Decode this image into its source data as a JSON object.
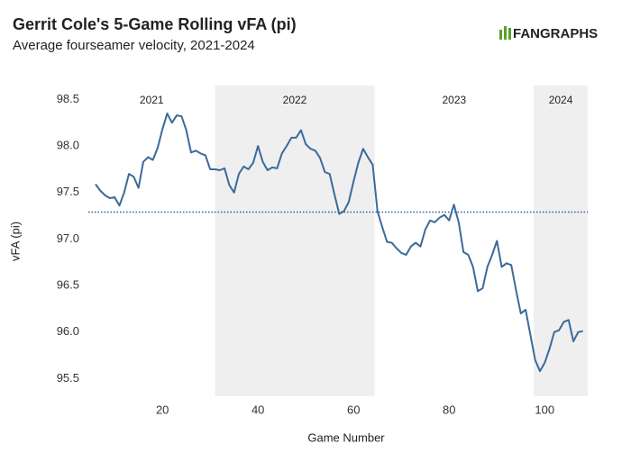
{
  "chart_data": {
    "type": "line",
    "title": "Gerrit Cole's 5-Game Rolling vFA (pi)",
    "subtitle": "Average fourseamer velocity, 2021-2024",
    "logo": "FANGRAPHS",
    "xlabel": "Game Number",
    "ylabel": "vFA (pi)",
    "xlim": [
      4.5,
      109
    ],
    "ylim": [
      95.31,
      98.65
    ],
    "xticks": [
      20,
      40,
      60,
      80,
      100
    ],
    "yticks": [
      95.5,
      {
        "value": 96,
        "label": "96.0"
      },
      96.5,
      {
        "value": 97,
        "label": "97.0"
      },
      97.5,
      {
        "value": 98,
        "label": "98.0"
      },
      98.5
    ],
    "grid": false,
    "seasons": [
      {
        "label": "2021",
        "start": 4.5,
        "end": 31,
        "shaded": false
      },
      {
        "label": "2022",
        "start": 31,
        "end": 64.4,
        "shaded": true
      },
      {
        "label": "2023",
        "start": 64.4,
        "end": 97.7,
        "shaded": false
      },
      {
        "label": "2024",
        "start": 97.7,
        "end": 109,
        "shaded": true
      }
    ],
    "reference_line": {
      "value": 97.29,
      "color": "#2f5f9e"
    },
    "x": [
      6,
      7,
      8,
      9,
      10,
      11,
      12,
      13,
      14,
      15,
      16,
      17,
      18,
      19,
      20,
      21,
      22,
      23,
      24,
      25,
      26,
      27,
      28,
      29,
      30,
      31,
      32,
      33,
      34,
      35,
      36,
      37,
      38,
      39,
      40,
      41,
      42,
      43,
      44,
      45,
      46,
      47,
      48,
      49,
      50,
      51,
      52,
      53,
      54,
      55,
      56,
      57,
      58,
      59,
      60,
      61,
      62,
      63,
      64,
      65,
      66,
      67,
      68,
      69,
      70,
      71,
      72,
      73,
      74,
      75,
      76,
      77,
      78,
      79,
      80,
      81,
      82,
      83,
      84,
      85,
      86,
      87,
      88,
      89,
      90,
      91,
      92,
      93,
      94,
      95,
      96,
      97,
      98,
      99,
      100,
      101,
      102,
      103,
      104,
      105,
      106,
      107,
      108
    ],
    "series": [
      {
        "name": "vFA",
        "color": "#3c6a9a",
        "values": [
          97.59,
          97.52,
          97.47,
          97.44,
          97.45,
          97.36,
          97.5,
          97.7,
          97.67,
          97.55,
          97.83,
          97.88,
          97.85,
          97.98,
          98.18,
          98.35,
          98.25,
          98.33,
          98.32,
          98.17,
          97.93,
          97.95,
          97.92,
          97.9,
          97.75,
          97.75,
          97.74,
          97.76,
          97.58,
          97.5,
          97.7,
          97.78,
          97.75,
          97.82,
          98.0,
          97.83,
          97.74,
          97.77,
          97.76,
          97.92,
          98.0,
          98.09,
          98.09,
          98.17,
          98.02,
          97.97,
          97.95,
          97.87,
          97.72,
          97.7,
          97.48,
          97.27,
          97.3,
          97.4,
          97.62,
          97.82,
          97.97,
          97.88,
          97.8,
          97.3,
          97.13,
          96.97,
          96.96,
          96.9,
          96.85,
          96.83,
          96.92,
          96.96,
          96.92,
          97.1,
          97.2,
          97.18,
          97.23,
          97.26,
          97.2,
          97.37,
          97.18,
          96.86,
          96.83,
          96.7,
          96.44,
          96.47,
          96.7,
          96.83,
          96.98,
          96.7,
          96.74,
          96.72,
          96.45,
          96.2,
          96.24,
          95.97,
          95.7,
          95.58,
          95.67,
          95.82,
          96.0,
          96.02,
          96.11,
          96.13,
          95.9,
          96.0,
          96.01
        ]
      }
    ]
  }
}
